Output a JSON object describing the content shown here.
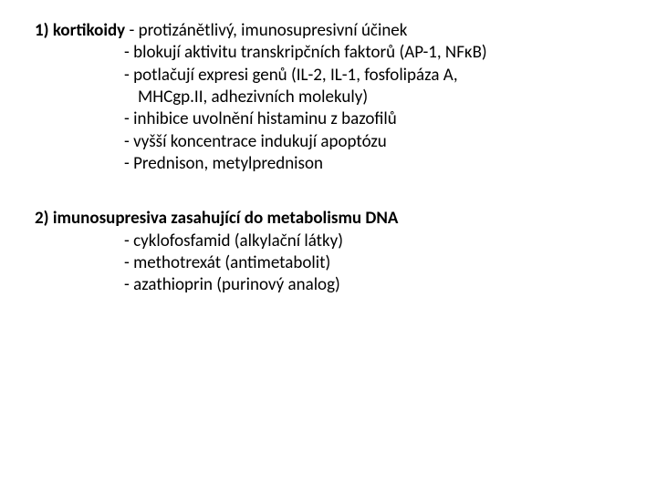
{
  "section1": {
    "heading": "1) kortikoidy",
    "headAfter": " - protizánětlivý, imunosupresivní účinek",
    "line2": "- blokují aktivitu transkripčních faktorů (AP-1, NFκB)",
    "line3": "- potlačují expresi genů (IL-2, IL-1, fosfolipáza A,",
    "line4": "MHCgp.II, adhezivních molekuly)",
    "line5": "- inhibice uvolnění histaminu z bazofilů",
    "line6": "- vyšší koncentrace indukují apoptózu",
    "line7": "- Prednison, metylprednison"
  },
  "section2": {
    "heading": "2) imunosupresiva zasahující do metabolismu DNA",
    "line2": "- cyklofosfamid (alkylační látky)",
    "line3": "- methotrexát (antimetabolit)",
    "line4": "- azathioprin (purinový analog)"
  }
}
